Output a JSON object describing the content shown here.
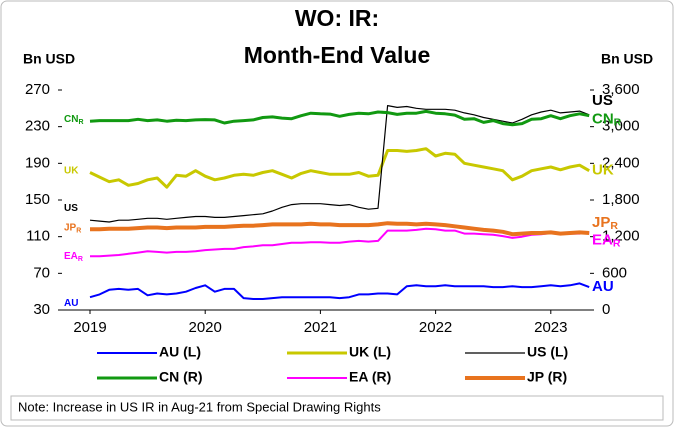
{
  "chart_data": {
    "type": "line",
    "title": "WO: IR:",
    "subtitle": "Month-End Value",
    "y_label": "Bn USD",
    "y2_label": "Bn USD",
    "note": "Note: Increase in US IR in Aug-21 from Special Drawing Rights",
    "categories": [
      "2019",
      null,
      null,
      null,
      null,
      null,
      null,
      null,
      null,
      null,
      null,
      null,
      "2020",
      null,
      null,
      null,
      null,
      null,
      null,
      null,
      null,
      null,
      null,
      null,
      "2021",
      null,
      null,
      null,
      null,
      null,
      null,
      null,
      null,
      null,
      null,
      null,
      "2022",
      null,
      null,
      null,
      null,
      null,
      null,
      null,
      null,
      null,
      null,
      null,
      "2023",
      null,
      null,
      null,
      null
    ],
    "ylim": [
      30,
      270
    ],
    "yticks": [
      30,
      70,
      110,
      150,
      190,
      230,
      270
    ],
    "y2lim": [
      0,
      3600
    ],
    "y2ticks": [
      0,
      600,
      {
        "value": 1200,
        "label": "1,200"
      },
      {
        "value": 1800,
        "label": "1,800"
      },
      {
        "value": 2400,
        "label": "2,400"
      },
      {
        "value": 3000,
        "label": "3,000"
      },
      {
        "value": 3600,
        "label": "3,600"
      }
    ],
    "series": [
      {
        "name": "AU (L)",
        "tag": "AU",
        "color": "#0000ff",
        "width": 2,
        "values": [
          44,
          47,
          52,
          53,
          52,
          53,
          46,
          48,
          47,
          48,
          50,
          54,
          57,
          50,
          53,
          53,
          43,
          42,
          42,
          43,
          44,
          44,
          44,
          44,
          44,
          44,
          43,
          44,
          47,
          47,
          48,
          48,
          47,
          56,
          57,
          56,
          56,
          57,
          56,
          56,
          56,
          56,
          55,
          55,
          56,
          55,
          55,
          56,
          57,
          56,
          57,
          59,
          55
        ]
      },
      {
        "name": "UK (L)",
        "tag": "UK",
        "color": "#c8c800",
        "width": 3,
        "values": [
          180,
          175,
          170,
          172,
          166,
          168,
          172,
          174,
          164,
          177,
          176,
          182,
          176,
          172,
          174,
          177,
          178,
          177,
          180,
          182,
          178,
          174,
          179,
          182,
          180,
          178,
          178,
          178,
          180,
          176,
          177,
          204,
          204,
          203,
          204,
          206,
          198,
          201,
          200,
          190,
          188,
          186,
          184,
          182,
          172,
          176,
          182,
          184,
          186,
          183,
          186,
          188,
          182
        ]
      },
      {
        "name": "US (L)",
        "tag": "US",
        "color": "#000000",
        "width": 1.2,
        "values": [
          128,
          127,
          126,
          128,
          128,
          129,
          130,
          130,
          129,
          130,
          131,
          132,
          132,
          131,
          131,
          132,
          133,
          134,
          135,
          138,
          142,
          145,
          146,
          146,
          146,
          145,
          144,
          145,
          142,
          140,
          141,
          253,
          251,
          252,
          250,
          249,
          249,
          249,
          248,
          245,
          243,
          240,
          238,
          236,
          234,
          238,
          243,
          246,
          248,
          245,
          246,
          247,
          243
        ]
      },
      {
        "name": "CN (R)",
        "tag": "CN",
        "tag_sub": "R",
        "color": "#119911",
        "width": 3,
        "axis": "y2",
        "values": [
          3090,
          3100,
          3100,
          3100,
          3100,
          3120,
          3100,
          3110,
          3090,
          3105,
          3100,
          3110,
          3115,
          3110,
          3060,
          3090,
          3100,
          3110,
          3150,
          3160,
          3140,
          3130,
          3180,
          3220,
          3210,
          3205,
          3170,
          3200,
          3220,
          3210,
          3240,
          3230,
          3200,
          3220,
          3220,
          3250,
          3220,
          3210,
          3190,
          3120,
          3130,
          3070,
          3100,
          3050,
          3030,
          3050,
          3120,
          3130,
          3180,
          3130,
          3180,
          3210,
          3180
        ]
      },
      {
        "name": "EA (R)",
        "tag": "EA",
        "tag_sub": "R",
        "color": "#ff00ff",
        "width": 2,
        "axis": "y2",
        "values": [
          880,
          880,
          890,
          900,
          920,
          940,
          960,
          950,
          940,
          950,
          950,
          960,
          980,
          990,
          1000,
          1000,
          1030,
          1040,
          1060,
          1060,
          1080,
          1100,
          1100,
          1110,
          1110,
          1100,
          1100,
          1120,
          1130,
          1120,
          1130,
          1300,
          1300,
          1300,
          1310,
          1330,
          1320,
          1300,
          1300,
          1250,
          1250,
          1240,
          1230,
          1210,
          1180,
          1200,
          1230,
          1240,
          1260,
          1240,
          1250,
          1250,
          1270
        ]
      },
      {
        "name": "JP (R)",
        "tag": "JP",
        "tag_sub": "R",
        "color": "#e8731e",
        "width": 4,
        "axis": "y2",
        "values": [
          1320,
          1320,
          1330,
          1330,
          1330,
          1340,
          1350,
          1350,
          1340,
          1350,
          1350,
          1350,
          1360,
          1360,
          1360,
          1370,
          1380,
          1380,
          1390,
          1400,
          1400,
          1400,
          1400,
          1410,
          1400,
          1400,
          1390,
          1390,
          1390,
          1390,
          1400,
          1420,
          1410,
          1410,
          1400,
          1410,
          1400,
          1390,
          1370,
          1350,
          1330,
          1310,
          1300,
          1280,
          1240,
          1250,
          1260,
          1260,
          1270,
          1250,
          1260,
          1270,
          1260
        ]
      }
    ]
  }
}
